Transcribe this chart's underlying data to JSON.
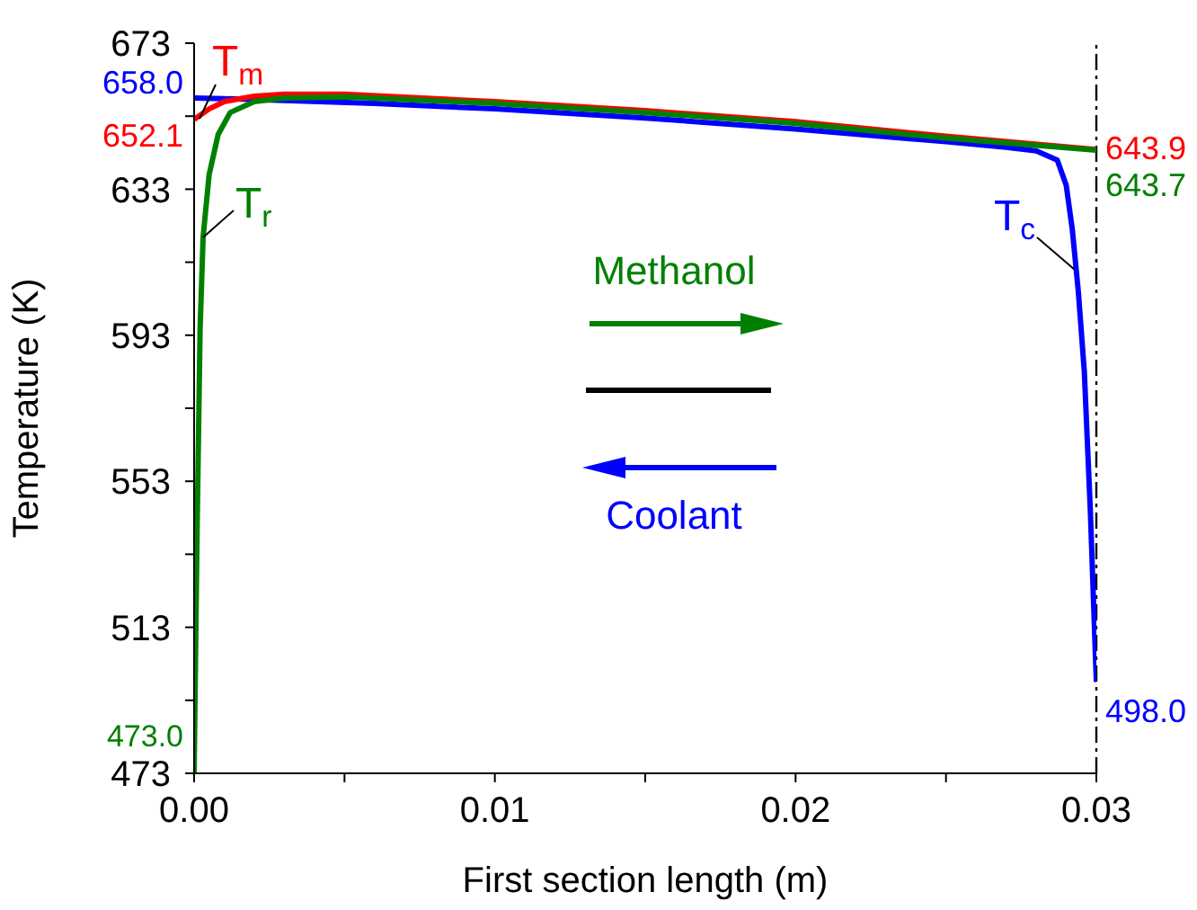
{
  "chart_data": {
    "type": "line",
    "xlabel": "First section length (m)",
    "ylabel": "Temperature (K)",
    "xlim": [
      0,
      0.03
    ],
    "ylim": [
      473,
      673
    ],
    "xticks": [
      {
        "value": 0,
        "label": "0.00"
      },
      {
        "value": 0.005,
        "label": null
      },
      {
        "value": 0.01,
        "label": "0.01"
      },
      {
        "value": 0.015,
        "label": null
      },
      {
        "value": 0.02,
        "label": "0.02"
      },
      {
        "value": 0.025,
        "label": null
      },
      {
        "value": 0.03,
        "label": "0.03"
      }
    ],
    "yticks": [
      473,
      {
        "value": 493,
        "label": null
      },
      513,
      {
        "value": 533,
        "label": null
      },
      553,
      {
        "value": 573,
        "label": null
      },
      593,
      {
        "value": 613,
        "label": null
      },
      633,
      {
        "value": 653,
        "label": null
      },
      673
    ],
    "grid": false,
    "legend": false,
    "marker": "none",
    "line_style": "solid",
    "series": [
      {
        "name": "T$_{c}$",
        "color": "#0000ff",
        "x": [
          0,
          0.001,
          0.003,
          0.006,
          0.01,
          0.015,
          0.02,
          0.025,
          0.027,
          0.028,
          0.0287,
          0.029,
          0.0292,
          0.0294,
          0.0296,
          0.0298,
          0.03
        ],
        "values": [
          658.0,
          657.8,
          657.3,
          656.5,
          655,
          652.5,
          649.5,
          646,
          644.5,
          643.5,
          641,
          634,
          622,
          605,
          583,
          545,
          498.0
        ],
        "value_labels": [
          "658.0",
          null,
          null,
          null,
          null,
          null,
          null,
          null,
          null,
          null,
          null,
          null,
          null,
          null,
          null,
          null,
          "498.0"
        ]
      },
      {
        "name": "T$_{m}$",
        "color": "#ff0000",
        "x": [
          0,
          0.0005,
          0.001,
          0.002,
          0.003,
          0.005,
          0.01,
          0.015,
          0.02,
          0.025,
          0.03
        ],
        "values": [
          652.1,
          655,
          657,
          658.5,
          659,
          659,
          657,
          654.5,
          651.5,
          647.5,
          643.9
        ],
        "value_labels": [
          "652.1",
          null,
          null,
          null,
          null,
          null,
          null,
          null,
          null,
          null,
          "643.9"
        ]
      },
      {
        "name": "T$_{r}$",
        "color": "#008000",
        "x": [
          0,
          0.0001,
          0.0002,
          0.0003,
          0.0005,
          0.0008,
          0.0012,
          0.002,
          0.003,
          0.005,
          0.01,
          0.015,
          0.02,
          0.025,
          0.03
        ],
        "values": [
          473.0,
          540,
          595,
          620,
          637,
          648,
          654,
          657,
          658,
          658.3,
          656.5,
          654,
          651,
          647,
          643.7
        ],
        "value_labels": [
          "473.0",
          null,
          null,
          null,
          null,
          null,
          null,
          null,
          null,
          null,
          null,
          null,
          null,
          null,
          "643.7"
        ]
      }
    ],
    "ref_lines": [
      {
        "axis": "x",
        "value": 0.03,
        "color": "#000000",
        "line_style": "dashed"
      }
    ],
    "annotations": [
      "Methanol",
      "Coolant"
    ]
  }
}
